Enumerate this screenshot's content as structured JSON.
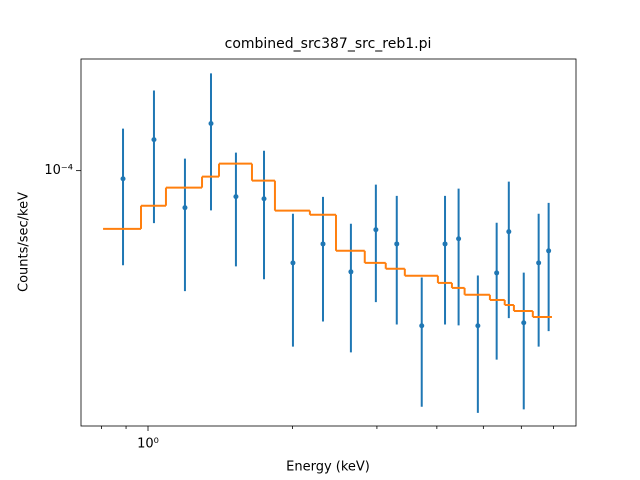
{
  "chart_data": {
    "type": "errorbar",
    "title": "combined_src387_src_reb1.pi",
    "xlabel": "Energy (keV)",
    "ylabel": "Counts/sec/keV",
    "xscale": "log",
    "yscale": "log",
    "xlim": [
      0.725,
      7.8
    ],
    "ylim": [
      1.23e-05,
      0.00025
    ],
    "xticks": [
      {
        "value": 1,
        "label": "10⁰"
      }
    ],
    "xminor_ticks": [
      0.8,
      0.9,
      2,
      3,
      4,
      5,
      6,
      7
    ],
    "yticks": [
      {
        "value": 0.0001,
        "label": "10⁻⁴"
      }
    ],
    "series": [
      {
        "color": "#1f77b4",
        "x": [
          0.887,
          1.029,
          1.194,
          1.353,
          1.525,
          1.745,
          2.005,
          2.316,
          2.648,
          2.985,
          3.3,
          3.72,
          4.16,
          4.44,
          4.87,
          5.33,
          5.65,
          6.07,
          6.52,
          6.84
        ],
        "values": [
          9.36e-05,
          0.000129,
          7.38e-05,
          0.0001472,
          8.08e-05,
          7.94e-05,
          4.69e-05,
          5.48e-05,
          4.36e-05,
          6.16e-05,
          5.48e-05,
          2.8e-05,
          5.48e-05,
          5.72e-05,
          2.8e-05,
          4.32e-05,
          6.06e-05,
          2.87e-05,
          4.69e-05,
          5.18e-05
        ],
        "errors": [
          4.76e-05,
          6.4e-05,
          3.66e-05,
          7.5e-05,
          3.52e-05,
          3.84e-05,
          2.33e-05,
          2.58e-05,
          2.11e-05,
          2.76e-05,
          2.65e-05,
          1.36e-05,
          2.65e-05,
          2.91e-05,
          1.43e-05,
          2.2e-05,
          3.08e-05,
          1.46e-05,
          2.33e-05,
          2.5e-05
        ]
      },
      {
        "color": "#ff7f0e",
        "style": "step",
        "edges": [
          0.806,
          0.967,
          1.09,
          1.296,
          1.406,
          1.647,
          1.839,
          2.175,
          2.465,
          2.83,
          3.13,
          3.43,
          4.02,
          4.3,
          4.57,
          5.16,
          5.54,
          5.79,
          6.34,
          6.95
        ],
        "values": [
          6.2e-05,
          7.5e-05,
          8.7e-05,
          9.52e-05,
          0.0001059,
          9.21e-05,
          7.2e-05,
          6.96e-05,
          5.18e-05,
          4.69e-05,
          4.47e-05,
          4.22e-05,
          3.98e-05,
          3.82e-05,
          3.61e-05,
          3.46e-05,
          3.32e-05,
          3.16e-05,
          3.01e-05
        ]
      }
    ]
  }
}
